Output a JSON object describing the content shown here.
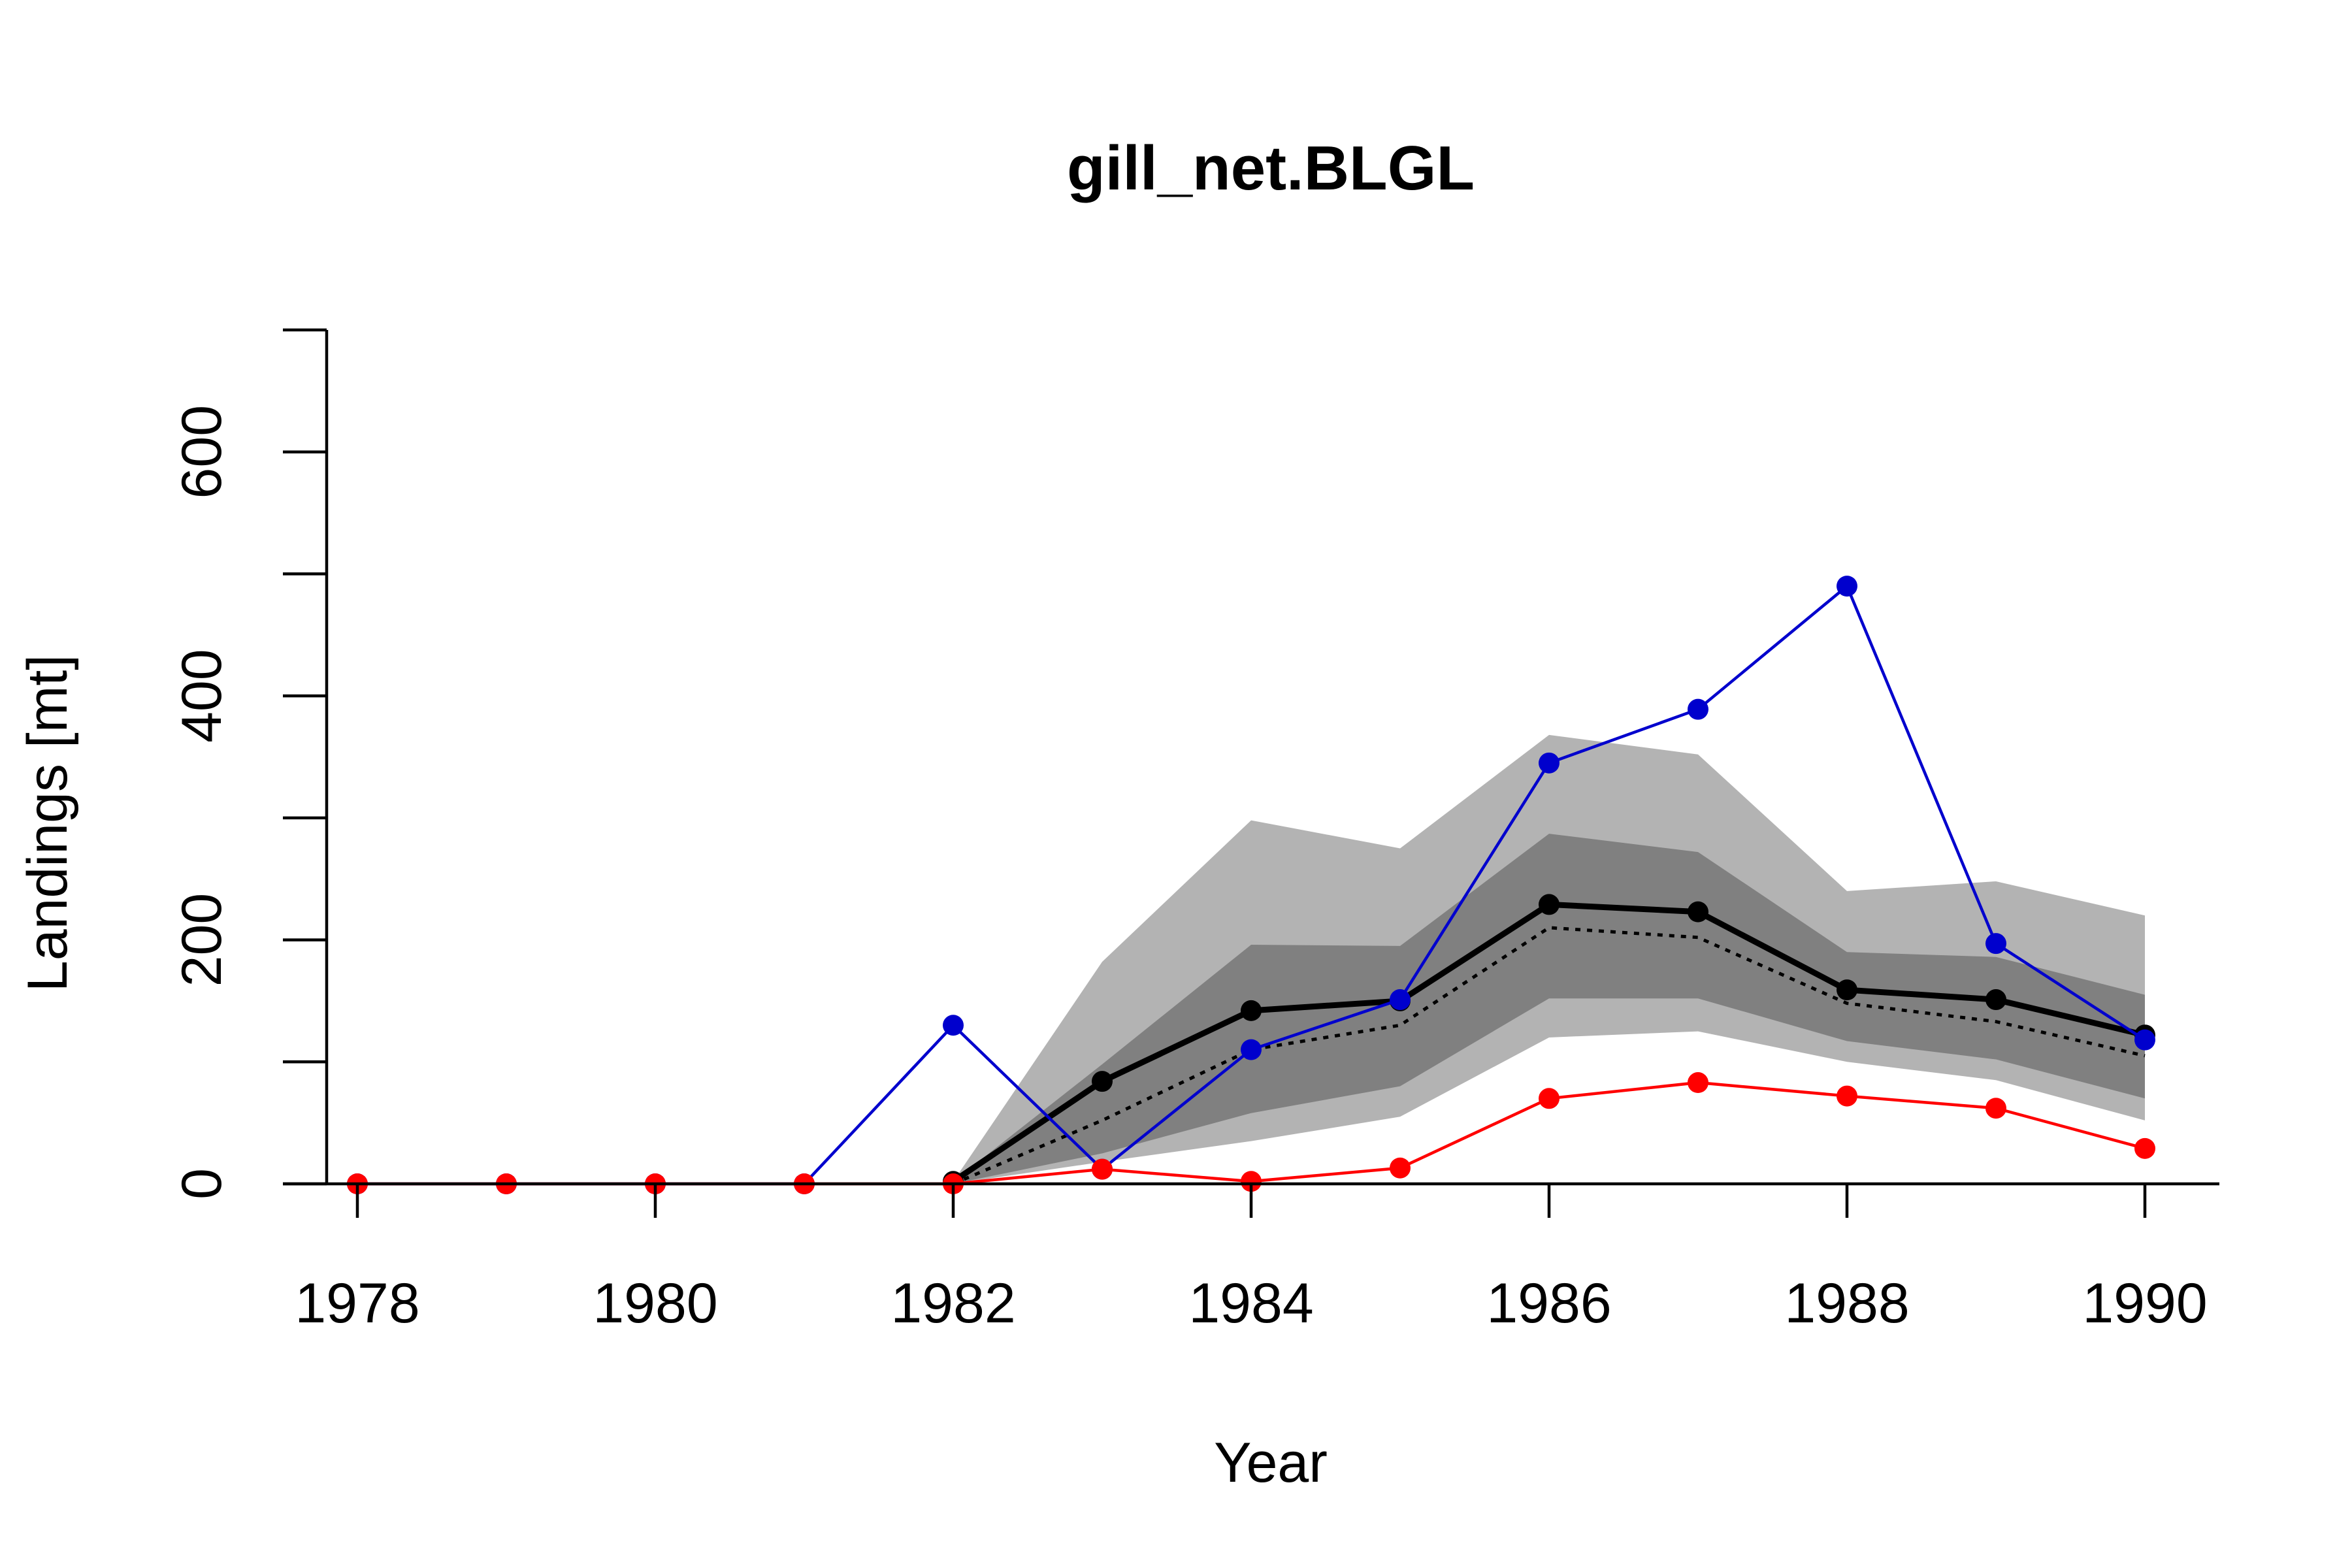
{
  "chart_data": {
    "type": "line",
    "title": "gill_net.BLGL",
    "xlabel": "Year",
    "ylabel": "Landings [mt]",
    "xlim": [
      1977.5,
      1990.5
    ],
    "ylim": [
      0,
      700
    ],
    "x_ticks": [
      1978,
      1980,
      1982,
      1984,
      1986,
      1988,
      1990
    ],
    "x_tick_labels": [
      "1978",
      "1980",
      "1982",
      "1984",
      "1986",
      "1988",
      "1990"
    ],
    "y_ticks": [
      0,
      100,
      200,
      300,
      400,
      500,
      600,
      700
    ],
    "y_tick_labels": [
      "0",
      "",
      "200",
      "",
      "400",
      "",
      "600",
      ""
    ],
    "grid": false,
    "legend": "none",
    "x": [
      1978,
      1979,
      1980,
      1981,
      1982,
      1983,
      1984,
      1985,
      1986,
      1987,
      1988,
      1989,
      1990
    ],
    "bands": [
      {
        "role": "outer-interval",
        "color": "#b3b3b3",
        "x": [
          1982,
          1983,
          1984,
          1985,
          1986,
          1987,
          1988,
          1989,
          1990
        ],
        "lower": [
          0,
          18,
          35,
          55,
          120,
          125,
          100,
          85,
          52
        ],
        "upper": [
          2,
          182,
          298,
          275,
          368,
          352,
          240,
          248,
          220
        ]
      },
      {
        "role": "inner-interval",
        "color": "#808080",
        "x": [
          1982,
          1983,
          1984,
          1985,
          1986,
          1987,
          1988,
          1989,
          1990
        ],
        "lower": [
          0,
          25,
          58,
          80,
          152,
          152,
          117,
          102,
          70
        ],
        "upper": [
          2,
          98,
          196,
          195,
          287,
          272,
          190,
          186,
          155
        ]
      }
    ],
    "series": [
      {
        "role": "median",
        "color": "#000000",
        "style": "dotted",
        "markers": false,
        "x": [
          1982,
          1983,
          1984,
          1985,
          1986,
          1987,
          1988,
          1989,
          1990
        ],
        "values": [
          0,
          52,
          110,
          130,
          210,
          202,
          148,
          133,
          105
        ]
      },
      {
        "role": "mean",
        "color": "#000000",
        "style": "solid-thick",
        "markers": true,
        "x": [
          1982,
          1983,
          1984,
          1985,
          1986,
          1987,
          1988,
          1989,
          1990
        ],
        "values": [
          2,
          84,
          142,
          150,
          229,
          223,
          159,
          151,
          122
        ]
      },
      {
        "role": "observed-blue",
        "color": "#0000cd",
        "style": "solid",
        "markers": true,
        "x": [
          1978,
          1979,
          1980,
          1981,
          1982,
          1983,
          1984,
          1985,
          1986,
          1987,
          1988,
          1989,
          1990
        ],
        "values": [
          0,
          0,
          0,
          0,
          130,
          12,
          110,
          151,
          345,
          389,
          490,
          197,
          118
        ]
      },
      {
        "role": "observed-red",
        "color": "#ff0000",
        "style": "solid",
        "markers": true,
        "x": [
          1978,
          1979,
          1980,
          1981,
          1982,
          1983,
          1984,
          1985,
          1986,
          1987,
          1988,
          1989,
          1990
        ],
        "values": [
          0,
          0,
          0,
          0,
          0,
          12,
          2,
          13,
          70,
          83,
          72,
          62,
          29
        ]
      }
    ]
  }
}
